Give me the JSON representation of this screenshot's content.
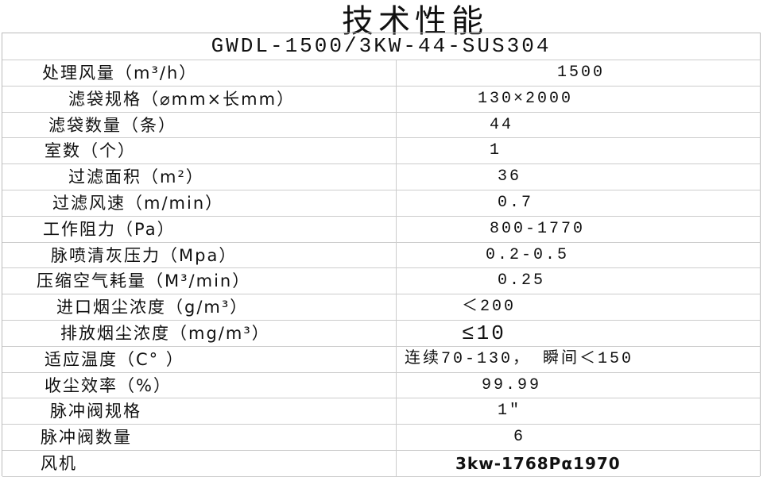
{
  "title": "技术性能",
  "model": "GWDL-1500/3KW-44-SUS304",
  "rows": [
    {
      "label": "处理风量（m³/h）",
      "value": "1500"
    },
    {
      "label": "滤袋规格（⌀mm×长mm）",
      "value": "130×2000"
    },
    {
      "label": "滤袋数量（条）",
      "value": "44"
    },
    {
      "label": "室数（个）",
      "value": "1"
    },
    {
      "label": "过滤面积（m²）",
      "value": "36"
    },
    {
      "label": "过滤风速（m/min）",
      "value": "0.7"
    },
    {
      "label": "工作阻力（Pa）",
      "value": "800-1770"
    },
    {
      "label": "脉喷清灰压力（Mpa）",
      "value": "0.2-0.5"
    },
    {
      "label": "压缩空气耗量（M³/min）",
      "value": "0.25"
    },
    {
      "label": "进口烟尘浓度（g/m³）",
      "value": "＜200"
    },
    {
      "label": "排放烟尘浓度（mg/m³）",
      "value": "≤10"
    },
    {
      "label": "适应温度（C°  ）",
      "value": "连续70-130， 瞬间＜150"
    },
    {
      "label": "收尘效率（%）",
      "value": "99.99"
    },
    {
      "label": "脉冲阀规格",
      "value": "1″"
    },
    {
      "label": "脉冲阀数量",
      "value": "6"
    },
    {
      "label": "风机",
      "value": "3kw-1768Pα1970"
    }
  ]
}
